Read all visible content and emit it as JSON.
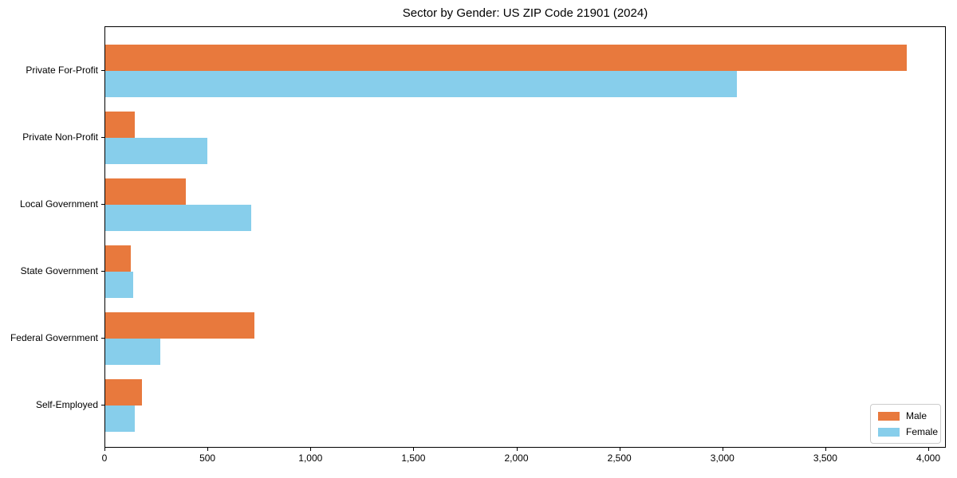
{
  "chart_data": {
    "type": "bar",
    "orientation": "horizontal",
    "title": "Sector by Gender: US ZIP Code 21901 (2024)",
    "categories": [
      "Private For-Profit",
      "Private Non-Profit",
      "Local Government",
      "State Government",
      "Federal Government",
      "Self-Employed"
    ],
    "series": [
      {
        "name": "Male",
        "color": "#e8793d",
        "values": [
          3890,
          145,
          390,
          122,
          723,
          178
        ]
      },
      {
        "name": "Female",
        "color": "#87ceeb",
        "values": [
          3065,
          495,
          710,
          137,
          266,
          143
        ]
      }
    ],
    "xlabel": "",
    "ylabel": "",
    "xlim": [
      0,
      4085
    ],
    "xticks": {
      "values": [
        0,
        500,
        1000,
        1500,
        2000,
        2500,
        3000,
        3500,
        4000
      ],
      "labels": [
        "0",
        "500",
        "1,000",
        "1,500",
        "2,000",
        "2,500",
        "3,000",
        "3,500",
        "4,000"
      ]
    },
    "grid": false,
    "legend": {
      "position": "lower right",
      "entries": [
        "Male",
        "Female"
      ]
    }
  },
  "colors": {
    "male": "#e8793d",
    "female": "#87ceeb",
    "axis": "#000000",
    "background": "#ffffff",
    "legend_border": "#cccccc"
  }
}
